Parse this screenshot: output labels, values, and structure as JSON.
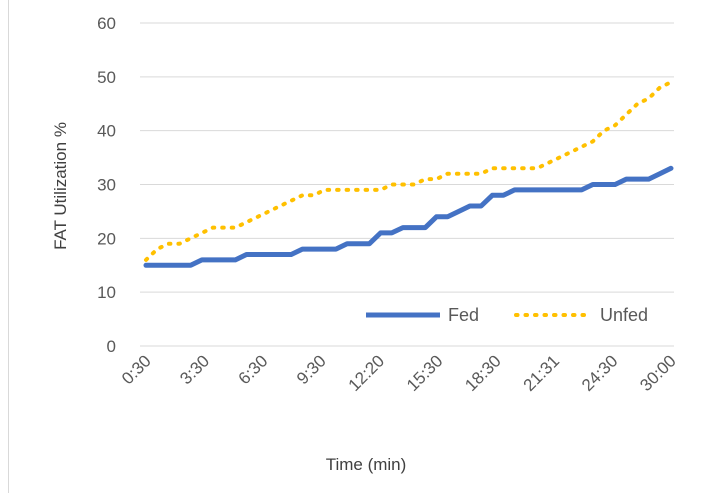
{
  "chart_data": {
    "type": "line",
    "title": "",
    "xlabel": "Time (min)",
    "ylabel": "FAT  Utilization %",
    "ylim": [
      0,
      60
    ],
    "yticks": [
      0,
      10,
      20,
      30,
      40,
      50,
      60
    ],
    "x_tick_labels": [
      "0:30",
      "3:30",
      "6:30",
      "9:30",
      "12:20",
      "15:30",
      "18:30",
      "21:31",
      "24:30",
      "30:00"
    ],
    "grid": true,
    "legend_position": "bottom-right",
    "series": [
      {
        "name": "Fed",
        "color": "#4472C4",
        "style": "solid",
        "values": [
          15,
          15,
          15,
          15,
          15,
          16,
          16,
          16,
          16,
          17,
          17,
          17,
          17,
          17,
          18,
          18,
          18,
          18,
          19,
          19,
          19,
          21,
          21,
          22,
          22,
          22,
          24,
          24,
          25,
          26,
          26,
          28,
          28,
          29,
          29,
          29,
          29,
          29,
          29,
          29,
          30,
          30,
          30,
          31,
          31,
          31,
          32,
          33
        ]
      },
      {
        "name": "Unfed",
        "color": "#FFC000",
        "style": "dotted",
        "values": [
          16,
          18,
          19,
          19,
          20,
          21,
          22,
          22,
          22,
          23,
          24,
          25,
          26,
          27,
          28,
          28,
          29,
          29,
          29,
          29,
          29,
          29,
          30,
          30,
          30,
          31,
          31,
          32,
          32,
          32,
          32,
          33,
          33,
          33,
          33,
          33,
          34,
          35,
          36,
          37,
          38,
          40,
          41,
          43,
          45,
          46,
          48,
          49
        ]
      }
    ]
  }
}
